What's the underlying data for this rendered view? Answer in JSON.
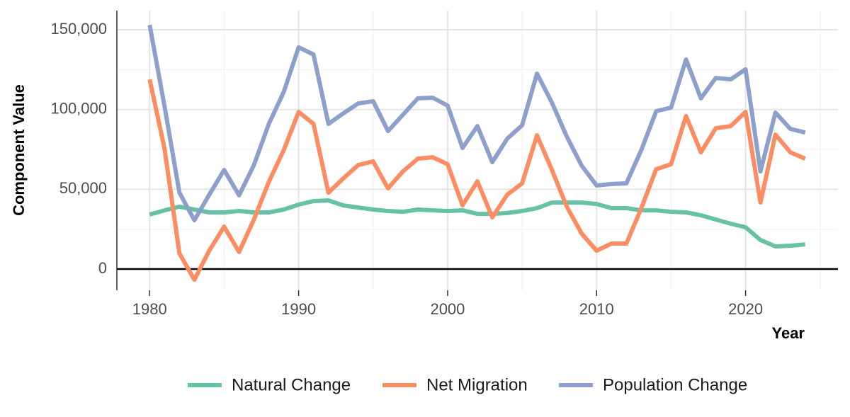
{
  "chart_data": {
    "type": "line",
    "x_label": "Year",
    "y_label": "Component Value",
    "x": [
      1980,
      1981,
      1982,
      1983,
      1984,
      1985,
      1986,
      1987,
      1988,
      1989,
      1990,
      1991,
      1992,
      1993,
      1994,
      1995,
      1996,
      1997,
      1998,
      1999,
      2000,
      2001,
      2002,
      2003,
      2004,
      2005,
      2006,
      2007,
      2008,
      2009,
      2010,
      2011,
      2012,
      2013,
      2014,
      2015,
      2016,
      2017,
      2018,
      2019,
      2020,
      2021,
      2022,
      2023,
      2024
    ],
    "series": [
      {
        "name": "Natural Change",
        "color": "#66c2a5",
        "values": [
          34200,
          36800,
          39100,
          37300,
          35500,
          35500,
          36400,
          35500,
          35500,
          37300,
          40400,
          42600,
          43000,
          39900,
          38600,
          37300,
          36400,
          35900,
          37300,
          36800,
          36400,
          36800,
          34600,
          34600,
          35100,
          36400,
          38200,
          41700,
          41700,
          41700,
          40800,
          38200,
          38200,
          36800,
          36800,
          35900,
          35500,
          33700,
          31100,
          28400,
          26200,
          18200,
          14200,
          14600,
          15500
        ]
      },
      {
        "name": "Net Migration",
        "color": "#fc8d62",
        "values": [
          118900,
          75400,
          9800,
          -6700,
          11500,
          26600,
          10700,
          31100,
          54600,
          74600,
          98500,
          91000,
          47900,
          56800,
          65200,
          67500,
          50600,
          61200,
          69200,
          70100,
          65700,
          39900,
          55000,
          32400,
          46600,
          53700,
          83900,
          62100,
          39100,
          22200,
          11500,
          16000,
          16000,
          38200,
          62600,
          65700,
          95900,
          73200,
          88300,
          89600,
          98500,
          41700,
          84300,
          73200,
          69200
        ]
      },
      {
        "name": "Population Change",
        "color": "#8da0cb",
        "values": [
          153000,
          102000,
          47900,
          30600,
          46600,
          62100,
          46200,
          65200,
          91000,
          111000,
          139000,
          134500,
          91000,
          97600,
          103800,
          105200,
          86500,
          96700,
          107000,
          107400,
          102500,
          75900,
          89600,
          67000,
          81700,
          90100,
          122500,
          104300,
          83000,
          64800,
          52400,
          53300,
          53700,
          74600,
          99000,
          101200,
          131400,
          107000,
          119800,
          118900,
          125200,
          61200,
          98100,
          87900,
          85600
        ]
      }
    ],
    "xlim": [
      1977.8,
      2026.2
    ],
    "xticks": [
      1980,
      1990,
      2000,
      2010,
      2020
    ],
    "ylim": [
      -13300,
      162000
    ],
    "yticks": [
      {
        "value": 0,
        "label": "0"
      },
      {
        "value": 50000,
        "label": "50,000"
      },
      {
        "value": 100000,
        "label": "100,000"
      },
      {
        "value": 150000,
        "label": "150,000"
      }
    ],
    "hline": 0,
    "grid": true,
    "legend": "bottom"
  }
}
